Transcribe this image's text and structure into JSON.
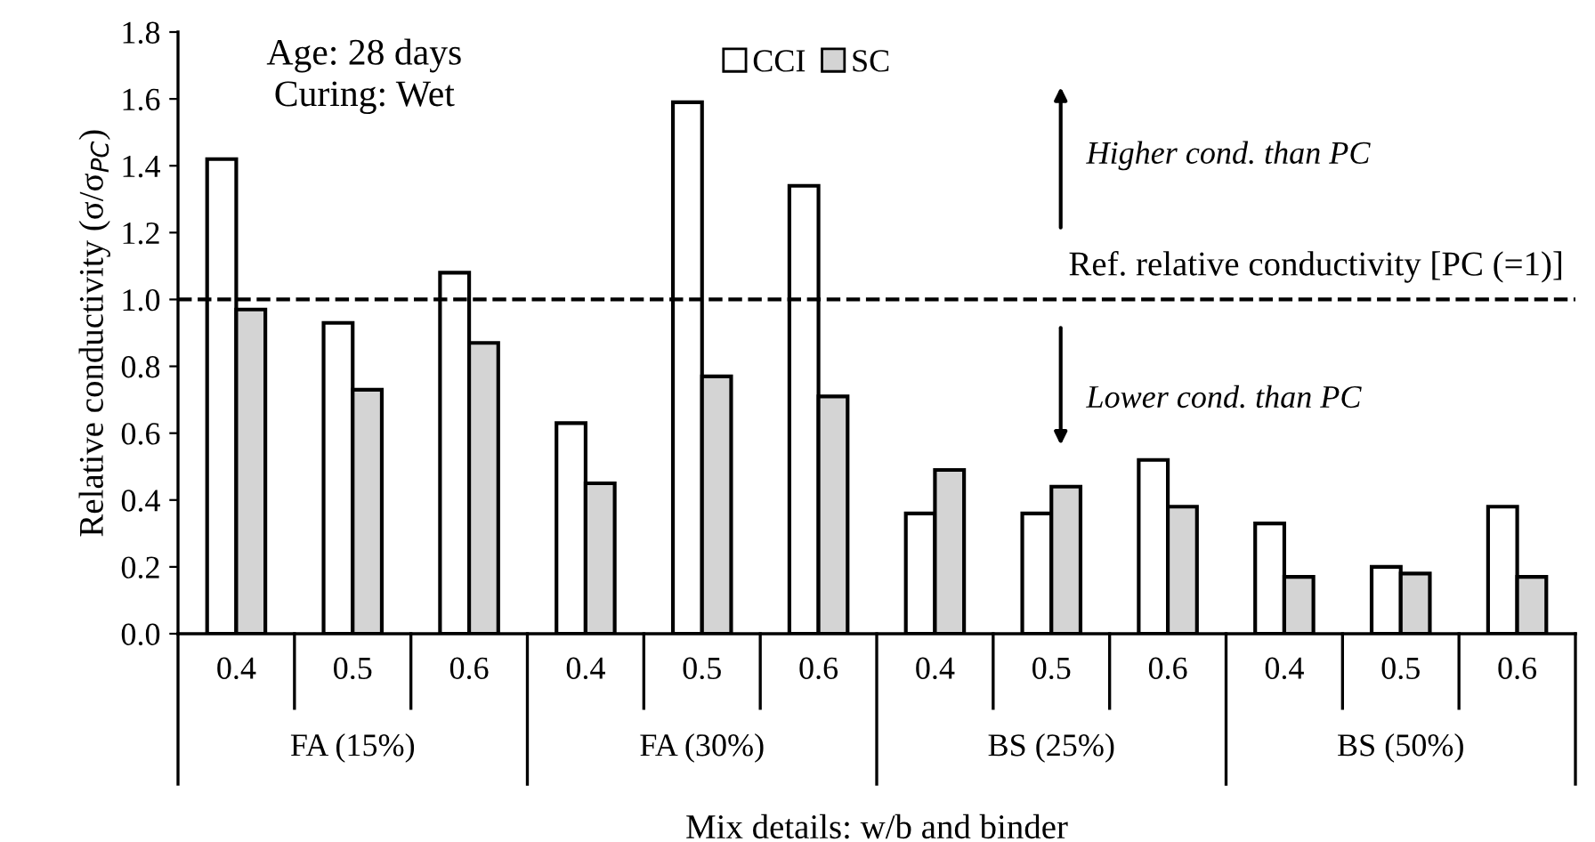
{
  "chart_data": {
    "type": "bar",
    "xlabel": "Mix details: w/b and binder",
    "ylabel": "Relative conductivity (σ/σ$_{PC}$)",
    "categories": [
      "0.4",
      "0.5",
      "0.6",
      "0.4",
      "0.5",
      "0.6",
      "0.4",
      "0.5",
      "0.6",
      "0.4",
      "0.5",
      "0.6"
    ],
    "series": [
      {
        "name": "CCI",
        "color": "#ffffff",
        "values": [
          1.42,
          0.93,
          1.08,
          0.63,
          1.59,
          1.34,
          0.36,
          0.36,
          0.52,
          0.33,
          0.2,
          0.38
        ]
      },
      {
        "name": "SC",
        "color": "#d4d4d4",
        "values": [
          0.97,
          0.73,
          0.87,
          0.45,
          0.77,
          0.71,
          0.49,
          0.44,
          0.38,
          0.17,
          0.18,
          0.17
        ]
      }
    ],
    "ylim": [
      0,
      1.8
    ],
    "yticks": [
      {
        "value": 0,
        "label": "0.0"
      },
      {
        "value": 0.2,
        "label": "0.2"
      },
      {
        "value": 0.4,
        "label": "0.4"
      },
      {
        "value": 0.6,
        "label": "0.6"
      },
      {
        "value": 0.8,
        "label": "0.8"
      },
      {
        "value": 1.0,
        "label": "1.0"
      },
      {
        "value": 1.2,
        "label": "1.2"
      },
      {
        "value": 1.4,
        "label": "1.4"
      },
      {
        "value": 1.6,
        "label": "1.6"
      },
      {
        "value": 1.8,
        "label": "1.8"
      }
    ],
    "grid": false,
    "legend": "top",
    "ref_lines": [
      {
        "axis": "y",
        "value": 1,
        "label": "Ref. relative conductivity [PC (=1)]",
        "line_style": "dashed",
        "color": "#000000"
      }
    ],
    "annotations": [
      "Age: 28 days\nCuring: Wet",
      "Higher cond. than PC",
      "Lower cond. than PC",
      "FA (15%)",
      "FA (30%)",
      "BS (25%)",
      "BS (50%)"
    ]
  }
}
